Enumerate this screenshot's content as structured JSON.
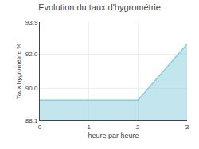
{
  "chart_data": {
    "type": "area",
    "title": "Evolution du taux d'hygrométrie",
    "xlabel": "heure par heure",
    "ylabel": "Taux hygrométrie %",
    "x": [
      0,
      2,
      3
    ],
    "values": [
      89.3,
      89.3,
      92.6
    ],
    "color": "#88ccdd",
    "xlim": [
      0,
      3
    ],
    "ylim": [
      88.1,
      93.9
    ],
    "xticks": [
      0,
      1,
      2,
      3
    ],
    "yticks": [
      88.1,
      {
        "value": 90,
        "label": "90.0"
      },
      {
        "value": 92,
        "label": "92.0"
      },
      93.9
    ],
    "grid": true
  }
}
